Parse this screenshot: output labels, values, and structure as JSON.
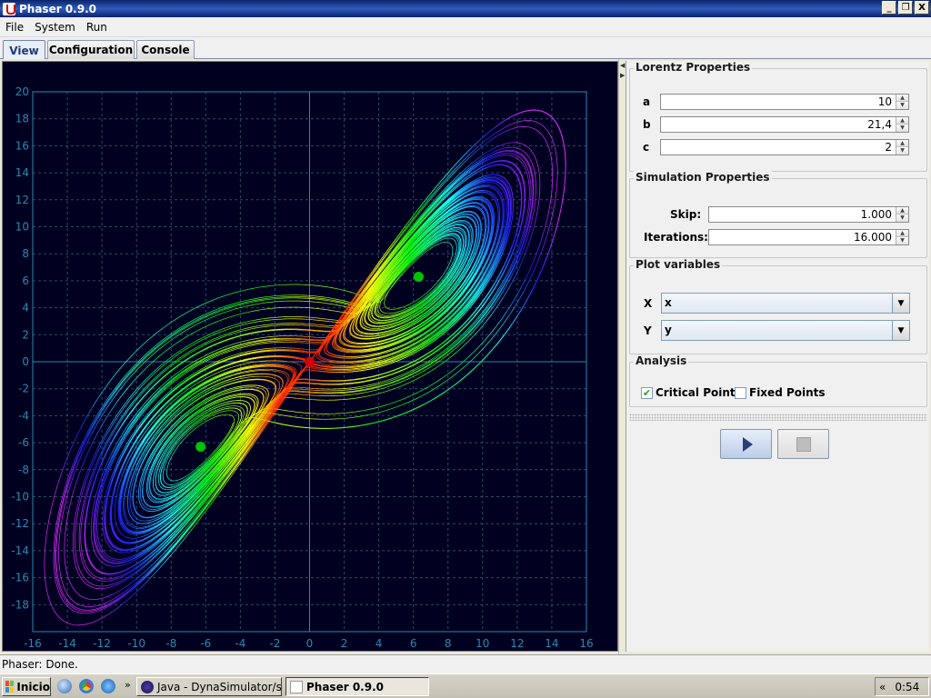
{
  "window": {
    "title": "Phaser 0.9.0",
    "controls": {
      "minimize": "_",
      "maximize": "❐",
      "close": "X"
    }
  },
  "menu": [
    "File",
    "System",
    "Run"
  ],
  "tabs": [
    "View",
    "Configuration",
    "Console"
  ],
  "active_tab": "View",
  "chart_data": {
    "type": "line",
    "description_source": "Lorentz attractor phase portrait, y vs x",
    "xlim": [
      -16,
      16
    ],
    "ylim": [
      -20,
      20
    ],
    "x_ticks": [
      "-16",
      "-14",
      "-12",
      "-10",
      "-8",
      "-6",
      "-4",
      "-2",
      "0",
      "2",
      "4",
      "6",
      "8",
      "10",
      "12",
      "14",
      "16"
    ],
    "y_ticks": [
      "20",
      "18",
      "16",
      "14",
      "12",
      "10",
      "8",
      "6",
      "4",
      "2",
      "0",
      "-2",
      "-4",
      "-6",
      "-8",
      "-10",
      "-12",
      "-14",
      "-16",
      "-18"
    ],
    "grid": true,
    "colors": {
      "background": "#000020",
      "axis": "#2a8ab0",
      "grid": "#2e4a6a",
      "tick_label": "#2a8ab0"
    },
    "critical_points": [
      {
        "x": 6.3,
        "y": 6.3,
        "color": "#00c000"
      },
      {
        "x": -6.3,
        "y": -6.3,
        "color": "#00c000"
      },
      {
        "x": 0,
        "y": 0,
        "color": "#d00000"
      }
    ]
  },
  "panel": {
    "lorentz": {
      "title": "Lorentz Properties",
      "rows": [
        {
          "label": "a",
          "value": "10"
        },
        {
          "label": "b",
          "value": "21,4"
        },
        {
          "label": "c",
          "value": "2"
        }
      ]
    },
    "simulation": {
      "title": "Simulation Properties",
      "rows": [
        {
          "label": "Skip:",
          "value": "1.000"
        },
        {
          "label": "Iterations:",
          "value": "16.000"
        }
      ]
    },
    "plot_vars": {
      "title": "Plot variables",
      "rows": [
        {
          "label": "X",
          "value": "x"
        },
        {
          "label": "Y",
          "value": "y"
        }
      ]
    },
    "analysis": {
      "title": "Analysis",
      "critical_points": {
        "label": "Critical Points",
        "checked": true
      },
      "fixed_points": {
        "label": "Fixed Points",
        "checked": false
      }
    }
  },
  "status": "Phaser: Done.",
  "taskbar": {
    "start": "Inicio",
    "chevron": "»",
    "tasks": [
      {
        "label": "Java - DynaSimulator/src...",
        "active": false
      },
      {
        "label": "Phaser 0.9.0",
        "active": true
      }
    ],
    "tray_chevron": "«",
    "clock": "0:54"
  }
}
